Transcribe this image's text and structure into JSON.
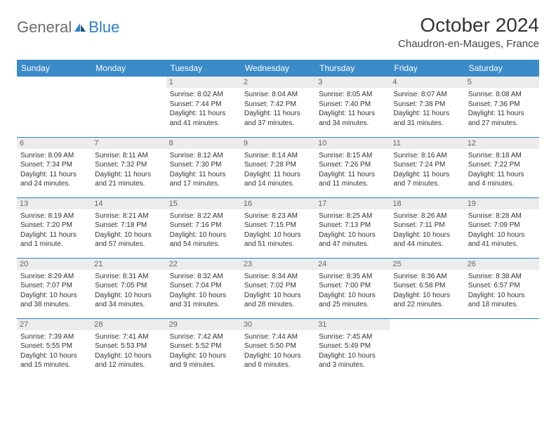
{
  "brand": {
    "general": "General",
    "blue": "Blue"
  },
  "header": {
    "title": "October 2024",
    "location": "Chaudron-en-Mauges, France"
  },
  "colors": {
    "header_bg": "#3b8bc9",
    "header_text": "#ffffff",
    "cell_border": "#2f7fc3",
    "daynum_bg": "#ececec",
    "daynum_text": "#666666",
    "body_text": "#333333",
    "logo_grey": "#6b6b6b",
    "logo_blue": "#2f7fc3"
  },
  "weekdays": [
    "Sunday",
    "Monday",
    "Tuesday",
    "Wednesday",
    "Thursday",
    "Friday",
    "Saturday"
  ],
  "weeks": [
    [
      null,
      null,
      {
        "n": "1",
        "sr": "Sunrise: 8:02 AM",
        "ss": "Sunset: 7:44 PM",
        "dl": "Daylight: 11 hours and 41 minutes."
      },
      {
        "n": "2",
        "sr": "Sunrise: 8:04 AM",
        "ss": "Sunset: 7:42 PM",
        "dl": "Daylight: 11 hours and 37 minutes."
      },
      {
        "n": "3",
        "sr": "Sunrise: 8:05 AM",
        "ss": "Sunset: 7:40 PM",
        "dl": "Daylight: 11 hours and 34 minutes."
      },
      {
        "n": "4",
        "sr": "Sunrise: 8:07 AM",
        "ss": "Sunset: 7:38 PM",
        "dl": "Daylight: 11 hours and 31 minutes."
      },
      {
        "n": "5",
        "sr": "Sunrise: 8:08 AM",
        "ss": "Sunset: 7:36 PM",
        "dl": "Daylight: 11 hours and 27 minutes."
      }
    ],
    [
      {
        "n": "6",
        "sr": "Sunrise: 8:09 AM",
        "ss": "Sunset: 7:34 PM",
        "dl": "Daylight: 11 hours and 24 minutes."
      },
      {
        "n": "7",
        "sr": "Sunrise: 8:11 AM",
        "ss": "Sunset: 7:32 PM",
        "dl": "Daylight: 11 hours and 21 minutes."
      },
      {
        "n": "8",
        "sr": "Sunrise: 8:12 AM",
        "ss": "Sunset: 7:30 PM",
        "dl": "Daylight: 11 hours and 17 minutes."
      },
      {
        "n": "9",
        "sr": "Sunrise: 8:14 AM",
        "ss": "Sunset: 7:28 PM",
        "dl": "Daylight: 11 hours and 14 minutes."
      },
      {
        "n": "10",
        "sr": "Sunrise: 8:15 AM",
        "ss": "Sunset: 7:26 PM",
        "dl": "Daylight: 11 hours and 11 minutes."
      },
      {
        "n": "11",
        "sr": "Sunrise: 8:16 AM",
        "ss": "Sunset: 7:24 PM",
        "dl": "Daylight: 11 hours and 7 minutes."
      },
      {
        "n": "12",
        "sr": "Sunrise: 8:18 AM",
        "ss": "Sunset: 7:22 PM",
        "dl": "Daylight: 11 hours and 4 minutes."
      }
    ],
    [
      {
        "n": "13",
        "sr": "Sunrise: 8:19 AM",
        "ss": "Sunset: 7:20 PM",
        "dl": "Daylight: 11 hours and 1 minute."
      },
      {
        "n": "14",
        "sr": "Sunrise: 8:21 AM",
        "ss": "Sunset: 7:18 PM",
        "dl": "Daylight: 10 hours and 57 minutes."
      },
      {
        "n": "15",
        "sr": "Sunrise: 8:22 AM",
        "ss": "Sunset: 7:16 PM",
        "dl": "Daylight: 10 hours and 54 minutes."
      },
      {
        "n": "16",
        "sr": "Sunrise: 8:23 AM",
        "ss": "Sunset: 7:15 PM",
        "dl": "Daylight: 10 hours and 51 minutes."
      },
      {
        "n": "17",
        "sr": "Sunrise: 8:25 AM",
        "ss": "Sunset: 7:13 PM",
        "dl": "Daylight: 10 hours and 47 minutes."
      },
      {
        "n": "18",
        "sr": "Sunrise: 8:26 AM",
        "ss": "Sunset: 7:11 PM",
        "dl": "Daylight: 10 hours and 44 minutes."
      },
      {
        "n": "19",
        "sr": "Sunrise: 8:28 AM",
        "ss": "Sunset: 7:09 PM",
        "dl": "Daylight: 10 hours and 41 minutes."
      }
    ],
    [
      {
        "n": "20",
        "sr": "Sunrise: 8:29 AM",
        "ss": "Sunset: 7:07 PM",
        "dl": "Daylight: 10 hours and 38 minutes."
      },
      {
        "n": "21",
        "sr": "Sunrise: 8:31 AM",
        "ss": "Sunset: 7:05 PM",
        "dl": "Daylight: 10 hours and 34 minutes."
      },
      {
        "n": "22",
        "sr": "Sunrise: 8:32 AM",
        "ss": "Sunset: 7:04 PM",
        "dl": "Daylight: 10 hours and 31 minutes."
      },
      {
        "n": "23",
        "sr": "Sunrise: 8:34 AM",
        "ss": "Sunset: 7:02 PM",
        "dl": "Daylight: 10 hours and 28 minutes."
      },
      {
        "n": "24",
        "sr": "Sunrise: 8:35 AM",
        "ss": "Sunset: 7:00 PM",
        "dl": "Daylight: 10 hours and 25 minutes."
      },
      {
        "n": "25",
        "sr": "Sunrise: 8:36 AM",
        "ss": "Sunset: 6:58 PM",
        "dl": "Daylight: 10 hours and 22 minutes."
      },
      {
        "n": "26",
        "sr": "Sunrise: 8:38 AM",
        "ss": "Sunset: 6:57 PM",
        "dl": "Daylight: 10 hours and 18 minutes."
      }
    ],
    [
      {
        "n": "27",
        "sr": "Sunrise: 7:39 AM",
        "ss": "Sunset: 5:55 PM",
        "dl": "Daylight: 10 hours and 15 minutes."
      },
      {
        "n": "28",
        "sr": "Sunrise: 7:41 AM",
        "ss": "Sunset: 5:53 PM",
        "dl": "Daylight: 10 hours and 12 minutes."
      },
      {
        "n": "29",
        "sr": "Sunrise: 7:42 AM",
        "ss": "Sunset: 5:52 PM",
        "dl": "Daylight: 10 hours and 9 minutes."
      },
      {
        "n": "30",
        "sr": "Sunrise: 7:44 AM",
        "ss": "Sunset: 5:50 PM",
        "dl": "Daylight: 10 hours and 6 minutes."
      },
      {
        "n": "31",
        "sr": "Sunrise: 7:45 AM",
        "ss": "Sunset: 5:49 PM",
        "dl": "Daylight: 10 hours and 3 minutes."
      },
      null,
      null
    ]
  ]
}
